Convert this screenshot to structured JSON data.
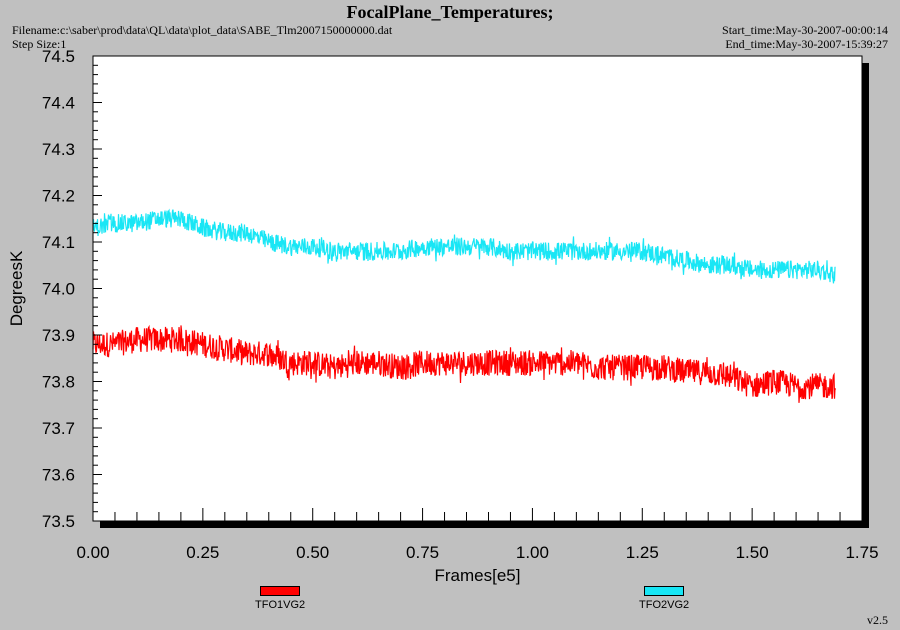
{
  "header": {
    "title": "FocalPlane_Temperatures;",
    "filename": "Filename:c:\\saber\\prod\\data\\QL\\data\\plot_data\\SABE_Tlm2007150000000.dat",
    "step_size": "Step Size:1",
    "start_time": "Start_time:May-30-2007-00:00:14",
    "end_time": "End_time:May-30-2007-15:39:27"
  },
  "footer": {
    "version": "v2.5"
  },
  "colors": {
    "series1": "#ff0000",
    "series2": "#19e6f5",
    "plot_bg": "#ffffff",
    "page_bg": "#c0c0c0"
  },
  "chart_data": {
    "type": "line",
    "title": "FocalPlane_Temperatures;",
    "xlabel": "Frames[e5]",
    "ylabel": "DegreesK",
    "xlim": [
      0,
      1.75
    ],
    "ylim": [
      73.5,
      74.5
    ],
    "xticks": [
      "0.00",
      "0.25",
      "0.50",
      "0.75",
      "1.00",
      "1.25",
      "1.50",
      "1.75"
    ],
    "yticks": [
      "73.5",
      "73.6",
      "73.7",
      "73.8",
      "73.9",
      "74.0",
      "74.1",
      "74.2",
      "74.3",
      "74.4",
      "74.5"
    ],
    "grid": false,
    "legend_position": "bottom",
    "series": [
      {
        "name": "TFO1VG2",
        "color": "#ff0000",
        "noise": 0.028,
        "x": [
          0.0,
          0.05,
          0.1,
          0.15,
          0.2,
          0.25,
          0.3,
          0.35,
          0.4,
          0.45,
          0.5,
          0.55,
          0.6,
          0.65,
          0.7,
          0.75,
          0.8,
          0.85,
          0.9,
          0.95,
          1.0,
          1.05,
          1.1,
          1.15,
          1.2,
          1.25,
          1.3,
          1.35,
          1.4,
          1.45,
          1.5,
          1.55,
          1.6,
          1.65,
          1.69
        ],
        "y": [
          73.88,
          73.88,
          73.89,
          73.89,
          73.89,
          73.88,
          73.87,
          73.86,
          73.86,
          73.84,
          73.84,
          73.83,
          73.84,
          73.84,
          73.83,
          73.84,
          73.84,
          73.84,
          73.84,
          73.84,
          73.84,
          73.84,
          73.84,
          73.83,
          73.83,
          73.83,
          73.83,
          73.82,
          73.82,
          73.81,
          73.79,
          73.8,
          73.79,
          73.79,
          73.79
        ]
      },
      {
        "name": "TFO2VG2",
        "color": "#19e6f5",
        "noise": 0.02,
        "x": [
          0.0,
          0.05,
          0.1,
          0.15,
          0.2,
          0.25,
          0.3,
          0.35,
          0.4,
          0.45,
          0.5,
          0.55,
          0.6,
          0.65,
          0.7,
          0.75,
          0.8,
          0.85,
          0.9,
          0.95,
          1.0,
          1.05,
          1.1,
          1.15,
          1.2,
          1.25,
          1.3,
          1.35,
          1.4,
          1.45,
          1.5,
          1.55,
          1.6,
          1.65,
          1.69
        ],
        "y": [
          74.13,
          74.14,
          74.14,
          74.15,
          74.15,
          74.13,
          74.12,
          74.12,
          74.1,
          74.09,
          74.09,
          74.08,
          74.08,
          74.08,
          74.08,
          74.09,
          74.09,
          74.09,
          74.09,
          74.08,
          74.08,
          74.08,
          74.08,
          74.08,
          74.08,
          74.08,
          74.07,
          74.06,
          74.05,
          74.05,
          74.04,
          74.04,
          74.04,
          74.04,
          74.03
        ]
      }
    ]
  }
}
